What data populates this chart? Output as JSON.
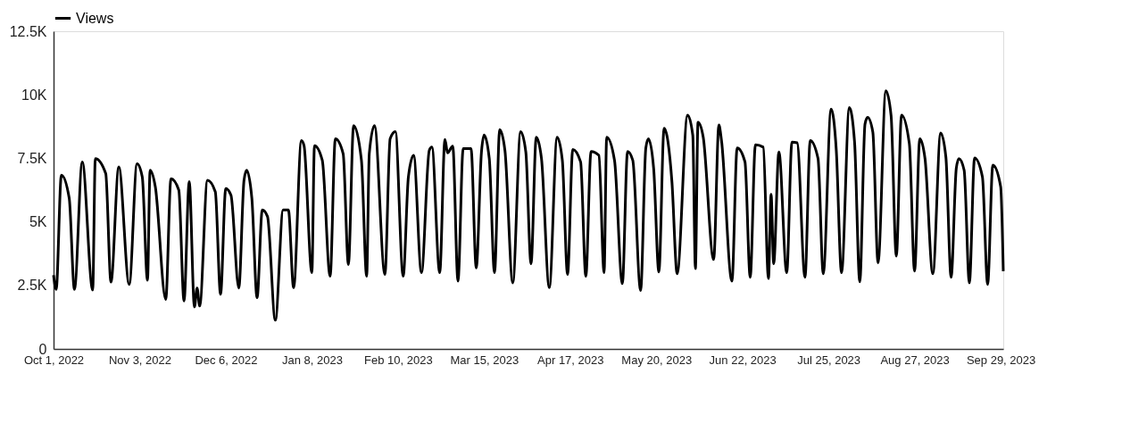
{
  "chart_data": {
    "type": "line",
    "x": [
      "2022-10-01",
      "2022-10-02",
      "2022-10-04",
      "2022-10-07",
      "2022-10-09",
      "2022-10-12",
      "2022-10-16",
      "2022-10-17",
      "2022-10-21",
      "2022-10-23",
      "2022-10-26",
      "2022-10-30",
      "2022-11-02",
      "2022-11-04",
      "2022-11-06",
      "2022-11-07",
      "2022-11-09",
      "2022-11-13",
      "2022-11-15",
      "2022-11-18",
      "2022-11-20",
      "2022-11-22",
      "2022-11-24",
      "2022-11-25",
      "2022-11-26",
      "2022-11-29",
      "2022-12-02",
      "2022-12-04",
      "2022-12-06",
      "2022-12-08",
      "2022-12-11",
      "2022-12-13",
      "2022-12-14",
      "2022-12-16",
      "2022-12-18",
      "2022-12-20",
      "2022-12-22",
      "2022-12-25",
      "2022-12-28",
      "2022-12-30",
      "2023-01-01",
      "2023-01-04",
      "2023-01-05",
      "2023-01-08",
      "2023-01-09",
      "2023-01-12",
      "2023-01-15",
      "2023-01-17",
      "2023-01-20",
      "2023-01-22",
      "2023-01-24",
      "2023-01-27",
      "2023-01-29",
      "2023-01-30",
      "2023-02-01",
      "2023-02-05",
      "2023-02-07",
      "2023-02-09",
      "2023-02-12",
      "2023-02-14",
      "2023-02-16",
      "2023-02-19",
      "2023-02-22",
      "2023-02-23",
      "2023-02-26",
      "2023-02-28",
      "2023-03-01",
      "2023-03-03",
      "2023-03-05",
      "2023-03-07",
      "2023-03-10",
      "2023-03-12",
      "2023-03-14",
      "2023-03-15",
      "2023-03-17",
      "2023-03-19",
      "2023-03-21",
      "2023-03-23",
      "2023-03-26",
      "2023-03-29",
      "2023-03-31",
      "2023-04-02",
      "2023-04-04",
      "2023-04-06",
      "2023-04-09",
      "2023-04-12",
      "2023-04-14",
      "2023-04-16",
      "2023-04-18",
      "2023-04-21",
      "2023-04-23",
      "2023-04-25",
      "2023-04-28",
      "2023-04-30",
      "2023-05-01",
      "2023-05-04",
      "2023-05-07",
      "2023-05-09",
      "2023-05-11",
      "2023-05-14",
      "2023-05-16",
      "2023-05-17",
      "2023-05-19",
      "2023-05-21",
      "2023-05-23",
      "2023-05-26",
      "2023-05-28",
      "2023-06-01",
      "2023-06-03",
      "2023-06-04",
      "2023-06-05",
      "2023-06-07",
      "2023-06-11",
      "2023-06-13",
      "2023-06-14",
      "2023-06-18",
      "2023-06-20",
      "2023-06-23",
      "2023-06-25",
      "2023-06-27",
      "2023-06-30",
      "2023-07-02",
      "2023-07-03",
      "2023-07-04",
      "2023-07-06",
      "2023-07-09",
      "2023-07-11",
      "2023-07-13",
      "2023-07-16",
      "2023-07-18",
      "2023-07-21",
      "2023-07-23",
      "2023-07-26",
      "2023-07-28",
      "2023-07-30",
      "2023-08-02",
      "2023-08-04",
      "2023-08-06",
      "2023-08-08",
      "2023-08-09",
      "2023-08-11",
      "2023-08-13",
      "2023-08-16",
      "2023-08-18",
      "2023-08-20",
      "2023-08-22",
      "2023-08-25",
      "2023-08-27",
      "2023-08-29",
      "2023-08-31",
      "2023-09-03",
      "2023-09-06",
      "2023-09-08",
      "2023-09-10",
      "2023-09-12",
      "2023-09-13",
      "2023-09-15",
      "2023-09-17",
      "2023-09-19",
      "2023-09-22",
      "2023-09-24",
      "2023-09-26",
      "2023-09-29",
      "2023-09-30"
    ],
    "series": [
      {
        "name": "Views",
        "color": "#000000",
        "values": [
          2900,
          2340,
          6840,
          5930,
          2340,
          7360,
          2320,
          7490,
          6900,
          2630,
          7160,
          2540,
          7290,
          6770,
          2700,
          7030,
          6380,
          1950,
          6700,
          6250,
          1890,
          6580,
          1650,
          2400,
          1690,
          6640,
          6180,
          2150,
          6310,
          6050,
          2400,
          6640,
          7030,
          5930,
          2020,
          5470,
          5210,
          1130,
          5470,
          5470,
          2410,
          8200,
          8000,
          3000,
          8000,
          7420,
          2860,
          8270,
          7680,
          3320,
          8790,
          7420,
          2860,
          7680,
          8790,
          2930,
          8270,
          8550,
          2860,
          6770,
          7620,
          3000,
          7810,
          7940,
          3000,
          8240,
          7720,
          7980,
          2670,
          7880,
          7880,
          3190,
          7750,
          8420,
          7490,
          3000,
          8630,
          7810,
          2600,
          8550,
          7750,
          3350,
          8330,
          7490,
          2410,
          8330,
          7420,
          2930,
          7850,
          7360,
          2860,
          7770,
          7620,
          3000,
          8330,
          7420,
          2570,
          7770,
          7420,
          2300,
          7910,
          8270,
          7100,
          3030,
          8680,
          6580,
          2960,
          9200,
          8400,
          3160,
          8920,
          8330,
          3520,
          8810,
          8200,
          2670,
          7910,
          7360,
          2820,
          8030,
          7940,
          2770,
          6080,
          3350,
          7750,
          3000,
          8140,
          8110,
          2820,
          8200,
          7490,
          2960,
          9440,
          7810,
          3000,
          9500,
          8140,
          2640,
          8850,
          9110,
          8530,
          3390,
          10160,
          9180,
          3650,
          9200,
          8070,
          3060,
          8270,
          7490,
          2960,
          8500,
          7550,
          2820,
          7120,
          7490,
          7030,
          2600,
          7510,
          6770,
          2540,
          7230,
          6380,
          3060
        ]
      }
    ],
    "xlim": [
      "2022-10-01",
      "2023-09-30"
    ],
    "xticks": [
      {
        "value": "2022-10-01",
        "label": "Oct 1, 2022"
      },
      {
        "value": "2022-11-03",
        "label": "Nov 3, 2022"
      },
      {
        "value": "2022-12-06",
        "label": "Dec 6, 2022"
      },
      {
        "value": "2023-01-08",
        "label": "Jan 8, 2023"
      },
      {
        "value": "2023-02-10",
        "label": "Feb 10, 2023"
      },
      {
        "value": "2023-03-15",
        "label": "Mar 15, 2023"
      },
      {
        "value": "2023-04-17",
        "label": "Apr 17, 2023"
      },
      {
        "value": "2023-05-20",
        "label": "May 20, 2023"
      },
      {
        "value": "2023-06-22",
        "label": "Jun 22, 2023"
      },
      {
        "value": "2023-07-25",
        "label": "Jul 25, 2023"
      },
      {
        "value": "2023-08-27",
        "label": "Aug 27, 2023"
      },
      {
        "value": "2023-09-29",
        "label": "Sep 29, 2023"
      }
    ],
    "ylim": [
      0,
      12500
    ],
    "yticks": [
      {
        "value": 0,
        "label": "0"
      },
      {
        "value": 2500,
        "label": "2.5K"
      },
      {
        "value": 5000,
        "label": "5K"
      },
      {
        "value": 7500,
        "label": "7.5K"
      },
      {
        "value": 10000,
        "label": "10K"
      },
      {
        "value": 12500,
        "label": "12.5K"
      }
    ],
    "legend": "top left",
    "grid": false,
    "marker": "none",
    "line_style": "solid"
  }
}
